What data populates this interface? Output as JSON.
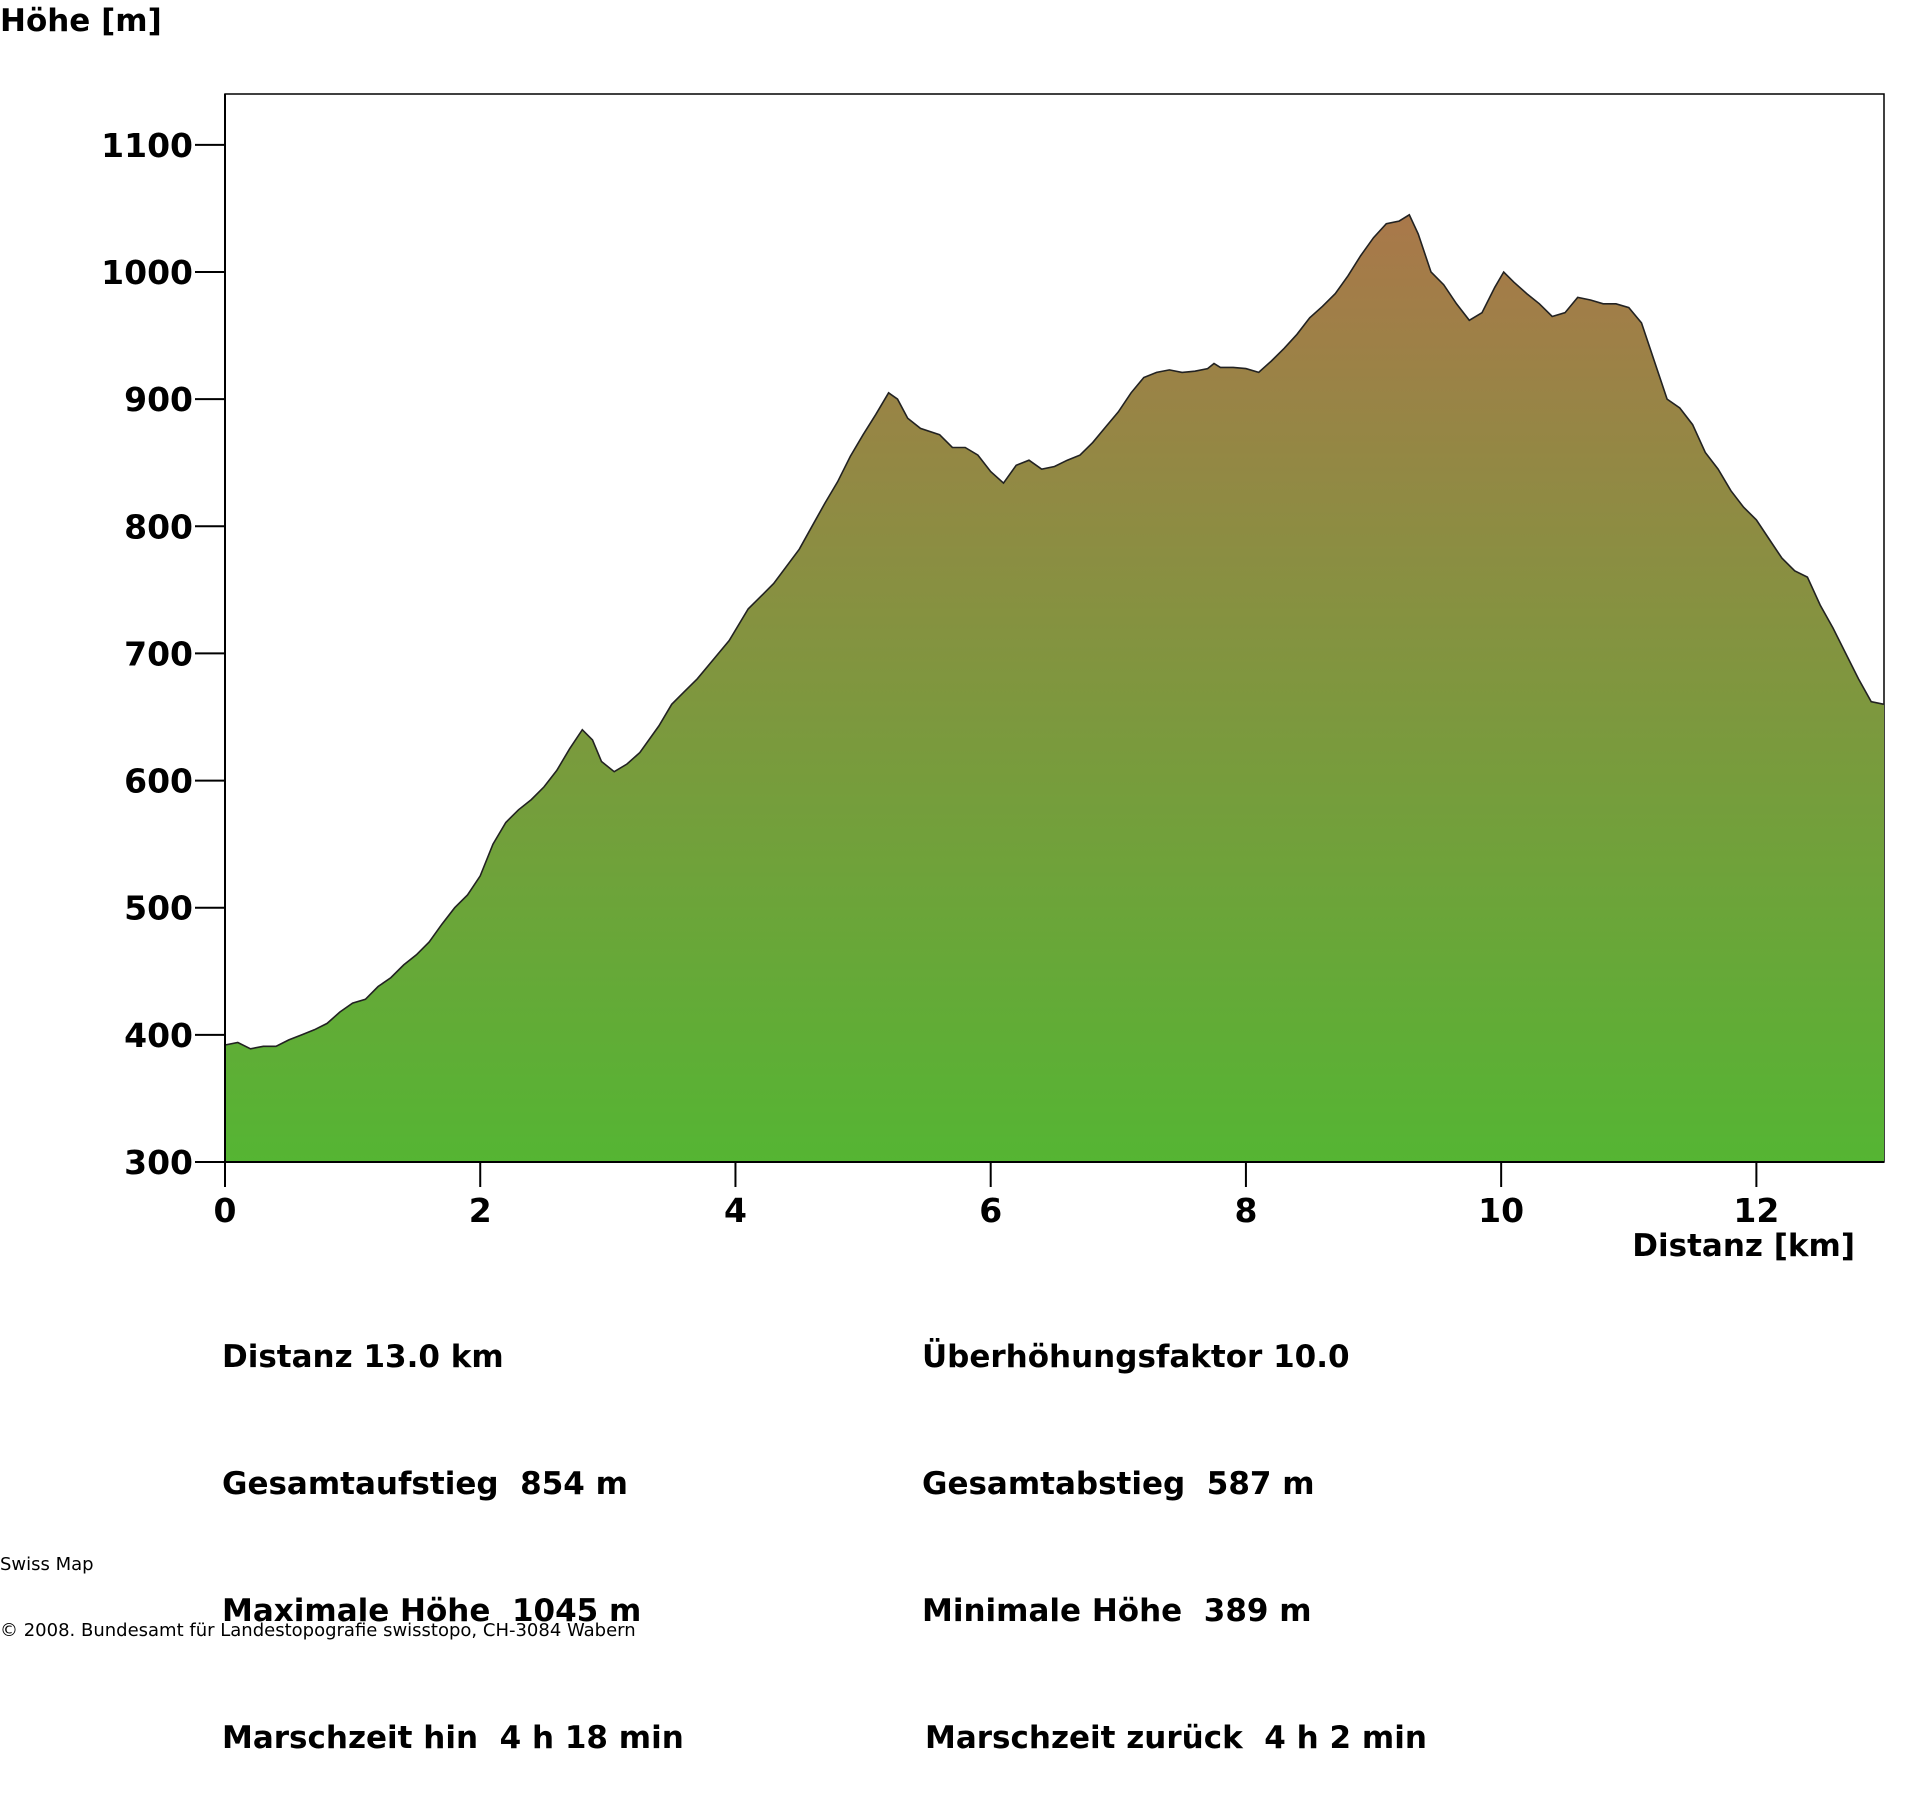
{
  "chart_data": {
    "type": "area",
    "ylabel": "Höhe [m]",
    "xlabel": "Distanz [km]",
    "xlim": [
      0,
      13
    ],
    "ylim": [
      300,
      1140
    ],
    "x_ticks": [
      0,
      2,
      4,
      6,
      8,
      10,
      12
    ],
    "x_tick_labels": [
      "0",
      "2",
      "4",
      "6",
      "8",
      "10",
      "12"
    ],
    "y_ticks": [
      300,
      400,
      500,
      600,
      700,
      800,
      900,
      1000,
      1100
    ],
    "y_tick_labels": [
      "300",
      "400",
      "500",
      "600",
      "700",
      "800",
      "900",
      "1000",
      "1100"
    ],
    "grid": false,
    "colors": {
      "fill_top": "#a9784a",
      "fill_bottom": "#55b533",
      "line": "#222222"
    },
    "series": [
      {
        "x": [
          0,
          0.1,
          0.2,
          0.3,
          0.4,
          0.5,
          0.6,
          0.7,
          0.8,
          0.9,
          1.0,
          1.1,
          1.2,
          1.3,
          1.4,
          1.5,
          1.6,
          1.7,
          1.8,
          1.9,
          2.0,
          2.1,
          2.2,
          2.3,
          2.4,
          2.5,
          2.6,
          2.7,
          2.8,
          2.88,
          2.95,
          3.05,
          3.15,
          3.25,
          3.4,
          3.5,
          3.6,
          3.7,
          3.85,
          3.95,
          4.1,
          4.2,
          4.3,
          4.5,
          4.6,
          4.7,
          4.8,
          4.9,
          5.0,
          5.1,
          5.2,
          5.27,
          5.35,
          5.45,
          5.6,
          5.7,
          5.8,
          5.9,
          6.0,
          6.1,
          6.2,
          6.3,
          6.4,
          6.5,
          6.6,
          6.7,
          6.8,
          6.9,
          7.0,
          7.1,
          7.2,
          7.3,
          7.4,
          7.5,
          7.6,
          7.7,
          7.75,
          7.8,
          7.9,
          8.0,
          8.1,
          8.2,
          8.3,
          8.4,
          8.5,
          8.6,
          8.7,
          8.8,
          8.9,
          9.0,
          9.1,
          9.2,
          9.28,
          9.35,
          9.45,
          9.55,
          9.65,
          9.75,
          9.85,
          9.95,
          10.02,
          10.1,
          10.2,
          10.3,
          10.4,
          10.5,
          10.6,
          10.7,
          10.8,
          10.9,
          11.0,
          11.1,
          11.2,
          11.3,
          11.4,
          11.5,
          11.6,
          11.7,
          11.8,
          11.9,
          12.0,
          12.1,
          12.2,
          12.3,
          12.4,
          12.5,
          12.6,
          12.7,
          12.8,
          12.9,
          13.0
        ],
        "values": [
          392,
          394,
          389,
          391,
          391,
          396,
          400,
          404,
          409,
          418,
          425,
          428,
          438,
          445,
          455,
          463,
          473,
          487,
          500,
          510,
          525,
          550,
          567,
          577,
          585,
          595,
          608,
          625,
          640,
          632,
          615,
          607,
          613,
          622,
          643,
          660,
          670,
          680,
          698,
          710,
          735,
          745,
          755,
          782,
          800,
          818,
          835,
          855,
          872,
          888,
          905,
          900,
          885,
          877,
          872,
          862,
          862,
          856,
          843,
          834,
          848,
          852,
          845,
          847,
          852,
          856,
          866,
          878,
          890,
          905,
          917,
          921,
          923,
          921,
          922,
          924,
          928,
          925,
          925,
          924,
          921,
          930,
          940,
          951,
          964,
          973,
          983,
          997,
          1013,
          1027,
          1038,
          1040,
          1045,
          1030,
          1000,
          990,
          975,
          962,
          968,
          988,
          1000,
          992,
          983,
          975,
          965,
          968,
          980,
          978,
          975,
          975,
          972,
          960,
          930,
          900,
          893,
          880,
          858,
          845,
          828,
          815,
          805,
          790,
          775,
          765,
          760,
          738,
          720,
          700,
          680,
          662,
          660
        ]
      }
    ]
  },
  "stats": {
    "left": [
      "Distanz 13.0 km",
      "Gesamtaufstieg  854 m",
      "Maximale Höhe  1045 m",
      "Marschzeit hin  4 h 18 min"
    ],
    "right": [
      "Überhöhungsfaktor 10.0",
      "Gesamtabstieg  587 m",
      "Minimale Höhe  389 m",
      "Marschzeit zurück  4 h 2 min"
    ]
  },
  "footer": {
    "line1": "Swiss Map",
    "line2": "© 2008. Bundesamt für Landestopografie swisstopo, CH-3084 Wabern"
  }
}
